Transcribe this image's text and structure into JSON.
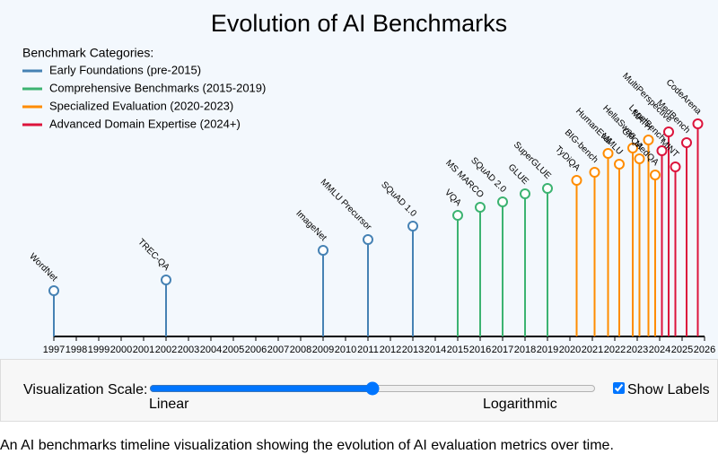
{
  "chart_data": {
    "type": "lollipop",
    "title": "Evolution of AI Benchmarks",
    "legend_title": "Benchmark Categories:",
    "legend": "top-left",
    "show_labels": true,
    "xlim": [
      1997,
      2026
    ],
    "xticks": [
      1997,
      1998,
      1999,
      2000,
      2001,
      2002,
      2003,
      2004,
      2005,
      2006,
      2007,
      2008,
      2009,
      2010,
      2011,
      2012,
      2013,
      2014,
      2015,
      2016,
      2017,
      2018,
      2019,
      2020,
      2021,
      2022,
      2023,
      2024,
      2025,
      2026
    ],
    "ylim": [
      0,
      100
    ],
    "series": [
      {
        "name": "Early Foundations (pre-2015)",
        "color": "#4682b4",
        "x": [
          1997,
          2002,
          2009,
          2011,
          2013
        ],
        "values": [
          17,
          21,
          32,
          36,
          41
        ],
        "labels": [
          "WordNet",
          "TREC-QA",
          "ImageNet",
          "MMLU Precursor",
          "SQuAD 1.0"
        ]
      },
      {
        "name": "Comprehensive Benchmarks (2015-2019)",
        "color": "#3cb371",
        "x": [
          2015,
          2016,
          2017,
          2018,
          2019
        ],
        "values": [
          45,
          48,
          50,
          53,
          55
        ],
        "labels": [
          "VQA",
          "MS MARCO",
          "SQuAD 2.0",
          "GLUE",
          "SuperGLUE"
        ]
      },
      {
        "name": "Specialized Evaluation (2020-2023)",
        "color": "#ff8c00",
        "x": [
          2020.3,
          2021.1,
          2021.7,
          2022.2,
          2022.8,
          2023.1,
          2023.5,
          2023.8
        ],
        "values": [
          58,
          61,
          68,
          64,
          70,
          66,
          73,
          60
        ],
        "labels": [
          "TyDiQA",
          "BIG-bench",
          "HumanEval",
          "MMLU",
          "HellaSwag",
          "GPQA",
          "MATH",
          "MedQA"
        ]
      },
      {
        "name": "Advanced Domain Expertise (2024+)",
        "color": "#dc143c",
        "x": [
          2024.1,
          2024.4,
          2024.7,
          2025.2,
          2025.7
        ],
        "values": [
          69,
          76,
          63,
          72,
          79
        ],
        "labels": [
          "LegalBench",
          "MultiPerspective",
          "MINT",
          "MedBench",
          "CodeArena"
        ]
      }
    ]
  },
  "controls": {
    "scale_label": "Visualization Scale:",
    "scale_value": 50,
    "min_label": "Linear",
    "max_label": "Logarithmic",
    "checkbox_label": "Show Labels"
  },
  "caption": "An AI benchmarks timeline visualization showing the evolution of AI evaluation metrics over time."
}
